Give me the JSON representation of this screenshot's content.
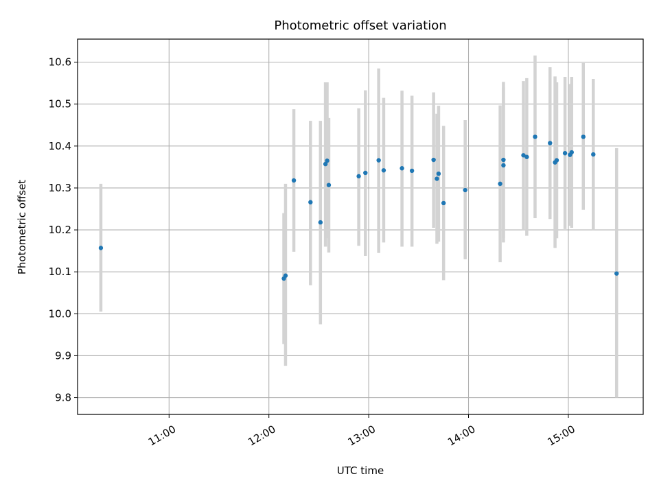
{
  "chart_data": {
    "type": "scatter",
    "title": "Photometric offset variation",
    "xlabel": "UTC time",
    "ylabel": "Photometric offset",
    "x_tick_labels": [
      "11:00",
      "12:00",
      "13:00",
      "14:00",
      "15:00"
    ],
    "y_tick_labels": [
      "9.8",
      "9.9",
      "10.0",
      "10.1",
      "10.2",
      "10.3",
      "10.4",
      "10.5",
      "10.6"
    ],
    "xlim": [
      "10:05",
      "15:45"
    ],
    "ylim": [
      9.76,
      10.655
    ],
    "grid": true,
    "legend": "none",
    "colors": {
      "points": "#1f77b4",
      "error_bars": "#d3d3d3",
      "grid": "#b0b0b0"
    },
    "series": [
      {
        "points": [
          {
            "x": "10:19",
            "y": 10.157,
            "ylow": 10.005,
            "yhigh": 10.31
          },
          {
            "x": "12:09",
            "y": 10.084,
            "ylow": 9.928,
            "yhigh": 10.24
          },
          {
            "x": "12:10",
            "y": 10.091,
            "ylow": 9.876,
            "yhigh": 10.31
          },
          {
            "x": "12:15",
            "y": 10.318,
            "ylow": 10.148,
            "yhigh": 10.488
          },
          {
            "x": "12:25",
            "y": 10.266,
            "ylow": 10.068,
            "yhigh": 10.46
          },
          {
            "x": "12:31",
            "y": 10.218,
            "ylow": 9.975,
            "yhigh": 10.46
          },
          {
            "x": "12:34",
            "y": 10.357,
            "ylow": 10.16,
            "yhigh": 10.552
          },
          {
            "x": "12:35",
            "y": 10.365,
            "ylow": 10.18,
            "yhigh": 10.552
          },
          {
            "x": "12:36",
            "y": 10.307,
            "ylow": 10.146,
            "yhigh": 10.467
          },
          {
            "x": "12:54",
            "y": 10.328,
            "ylow": 10.162,
            "yhigh": 10.49
          },
          {
            "x": "12:58",
            "y": 10.336,
            "ylow": 10.138,
            "yhigh": 10.533
          },
          {
            "x": "13:06",
            "y": 10.366,
            "ylow": 10.145,
            "yhigh": 10.585
          },
          {
            "x": "13:09",
            "y": 10.342,
            "ylow": 10.17,
            "yhigh": 10.515
          },
          {
            "x": "13:20",
            "y": 10.347,
            "ylow": 10.16,
            "yhigh": 10.532
          },
          {
            "x": "13:26",
            "y": 10.341,
            "ylow": 10.16,
            "yhigh": 10.52
          },
          {
            "x": "13:39",
            "y": 10.367,
            "ylow": 10.205,
            "yhigh": 10.528
          },
          {
            "x": "13:41",
            "y": 10.322,
            "ylow": 10.167,
            "yhigh": 10.477
          },
          {
            "x": "13:42",
            "y": 10.334,
            "ylow": 10.172,
            "yhigh": 10.496
          },
          {
            "x": "13:45",
            "y": 10.264,
            "ylow": 10.08,
            "yhigh": 10.448
          },
          {
            "x": "13:58",
            "y": 10.295,
            "ylow": 10.13,
            "yhigh": 10.462
          },
          {
            "x": "14:19",
            "y": 10.31,
            "ylow": 10.123,
            "yhigh": 10.497
          },
          {
            "x": "14:21",
            "y": 10.354,
            "ylow": 10.17,
            "yhigh": 10.54
          },
          {
            "x": "14:21",
            "y": 10.367,
            "ylow": 10.18,
            "yhigh": 10.553
          },
          {
            "x": "14:33",
            "y": 10.378,
            "ylow": 10.2,
            "yhigh": 10.555
          },
          {
            "x": "14:35",
            "y": 10.374,
            "ylow": 10.186,
            "yhigh": 10.562
          },
          {
            "x": "14:40",
            "y": 10.422,
            "ylow": 10.228,
            "yhigh": 10.616
          },
          {
            "x": "14:49",
            "y": 10.407,
            "ylow": 10.226,
            "yhigh": 10.588
          },
          {
            "x": "14:52",
            "y": 10.361,
            "ylow": 10.157,
            "yhigh": 10.566
          },
          {
            "x": "14:53",
            "y": 10.366,
            "ylow": 10.18,
            "yhigh": 10.552
          },
          {
            "x": "14:58",
            "y": 10.383,
            "ylow": 10.202,
            "yhigh": 10.565
          },
          {
            "x": "15:01",
            "y": 10.379,
            "ylow": 10.21,
            "yhigh": 10.548
          },
          {
            "x": "15:02",
            "y": 10.385,
            "ylow": 10.205,
            "yhigh": 10.565
          },
          {
            "x": "15:09",
            "y": 10.422,
            "ylow": 10.248,
            "yhigh": 10.598
          },
          {
            "x": "15:15",
            "y": 10.38,
            "ylow": 10.2,
            "yhigh": 10.56
          },
          {
            "x": "15:29",
            "y": 10.096,
            "ylow": 9.8,
            "yhigh": 10.395
          }
        ]
      }
    ]
  }
}
